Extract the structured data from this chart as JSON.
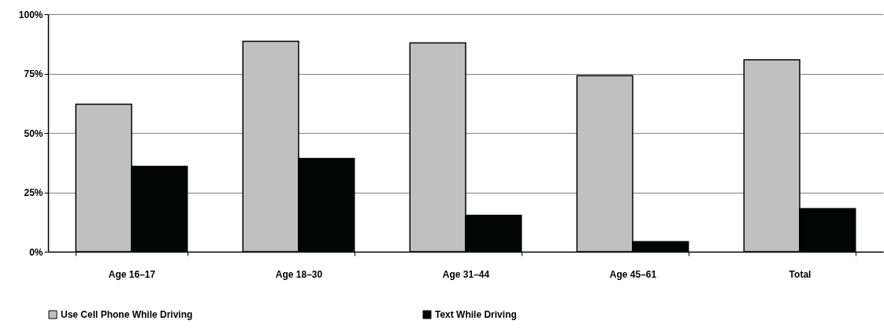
{
  "chart_data": {
    "type": "bar",
    "categories": [
      "Age 16–17",
      "Age 18–30",
      "Age 31–44",
      "Age 45–61",
      "Total"
    ],
    "series": [
      {
        "name": "Use Cell Phone While Driving",
        "color": "#c0c0c0",
        "values": [
          62.1,
          88.6,
          87.9,
          74.1,
          80.8
        ]
      },
      {
        "name": "Text While Driving",
        "color": "#030505",
        "values": [
          35.9,
          39.2,
          15.3,
          4.2,
          18.1
        ]
      }
    ],
    "ylim": [
      0,
      100
    ],
    "yticks": [
      {
        "value": 0,
        "label": "0%"
      },
      {
        "value": 25,
        "label": "25%"
      },
      {
        "value": 50,
        "label": "50%"
      },
      {
        "value": 75,
        "label": "75%"
      },
      {
        "value": 100,
        "label": "100%"
      }
    ],
    "grid": "y",
    "legend": "bottom"
  }
}
